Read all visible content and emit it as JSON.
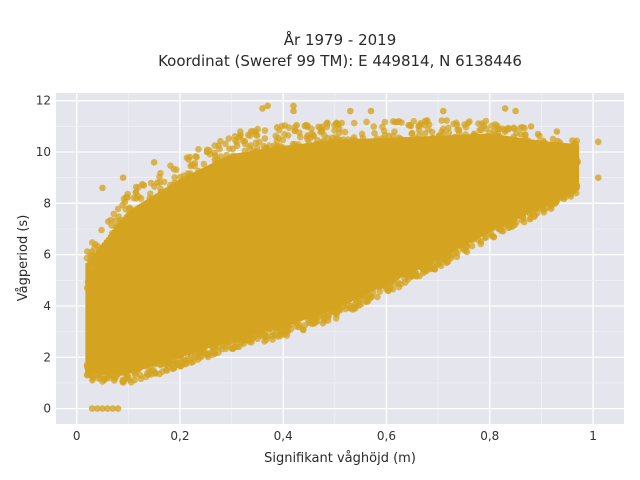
{
  "chart_data": {
    "type": "scatter",
    "title": "År 1979 - 2019",
    "subtitle": "Koordinat (Sweref 99 TM): E 449814, N 6138446",
    "xlabel": "Signifikant våghöjd (m)",
    "ylabel": "Vågperiod (s)",
    "xlim": [
      -0.04,
      1.06
    ],
    "ylim": [
      -0.6,
      12.3
    ],
    "x_ticks": [
      0,
      0.2,
      0.4,
      0.6,
      0.8,
      1
    ],
    "x_tick_labels": [
      "0",
      "0,2",
      "0,4",
      "0,6",
      "0,8",
      "1"
    ],
    "y_ticks": [
      0,
      2,
      4,
      6,
      8,
      10,
      12
    ],
    "y_tick_labels": [
      "0",
      "2",
      "4",
      "6",
      "8",
      "10",
      "12"
    ],
    "grid": true,
    "legend": "none",
    "marker_color": "#D4A420",
    "background_color": "#E5E5EE",
    "point_cloud": {
      "lower_edge": [
        [
          0.02,
          1.3
        ],
        [
          0.1,
          1.2
        ],
        [
          0.2,
          1.8
        ],
        [
          0.3,
          2.5
        ],
        [
          0.4,
          3.0
        ],
        [
          0.5,
          3.7
        ],
        [
          0.6,
          4.7
        ],
        [
          0.7,
          5.7
        ],
        [
          0.8,
          6.8
        ],
        [
          0.9,
          7.8
        ],
        [
          0.97,
          8.5
        ]
      ],
      "upper_edge": [
        [
          0.02,
          6.0
        ],
        [
          0.1,
          8.2
        ],
        [
          0.2,
          9.5
        ],
        [
          0.3,
          10.5
        ],
        [
          0.4,
          10.8
        ],
        [
          0.5,
          11.0
        ],
        [
          0.6,
          11.0
        ],
        [
          0.7,
          11.0
        ],
        [
          0.8,
          11.0
        ],
        [
          0.9,
          10.6
        ],
        [
          0.97,
          10.4
        ]
      ]
    },
    "highlighted_points": [
      {
        "x": 0.36,
        "y": 11.7
      },
      {
        "x": 0.37,
        "y": 11.8
      },
      {
        "x": 0.42,
        "y": 11.8
      },
      {
        "x": 0.42,
        "y": 11.6
      },
      {
        "x": 0.53,
        "y": 11.6
      },
      {
        "x": 0.57,
        "y": 11.6
      },
      {
        "x": 0.71,
        "y": 11.6
      },
      {
        "x": 0.83,
        "y": 11.7
      },
      {
        "x": 0.85,
        "y": 11.6
      },
      {
        "x": 0.88,
        "y": 11.0
      },
      {
        "x": 0.93,
        "y": 10.8
      },
      {
        "x": 1.01,
        "y": 10.4
      },
      {
        "x": 1.01,
        "y": 9.0
      },
      {
        "x": 0.97,
        "y": 9.6
      },
      {
        "x": 0.03,
        "y": 6.0
      },
      {
        "x": 0.05,
        "y": 8.6
      },
      {
        "x": 0.09,
        "y": 9.0
      },
      {
        "x": 0.13,
        "y": 8.7
      },
      {
        "x": 0.15,
        "y": 9.6
      },
      {
        "x": 0.03,
        "y": 5.5
      },
      {
        "x": 0.02,
        "y": 1.3
      },
      {
        "x": 0.02,
        "y": 1.7
      },
      {
        "x": 0.03,
        "y": 0.0
      },
      {
        "x": 0.04,
        "y": 0.0
      },
      {
        "x": 0.05,
        "y": 0.0
      },
      {
        "x": 0.06,
        "y": 0.0
      },
      {
        "x": 0.07,
        "y": 0.0
      },
      {
        "x": 0.08,
        "y": 0.0
      }
    ]
  }
}
